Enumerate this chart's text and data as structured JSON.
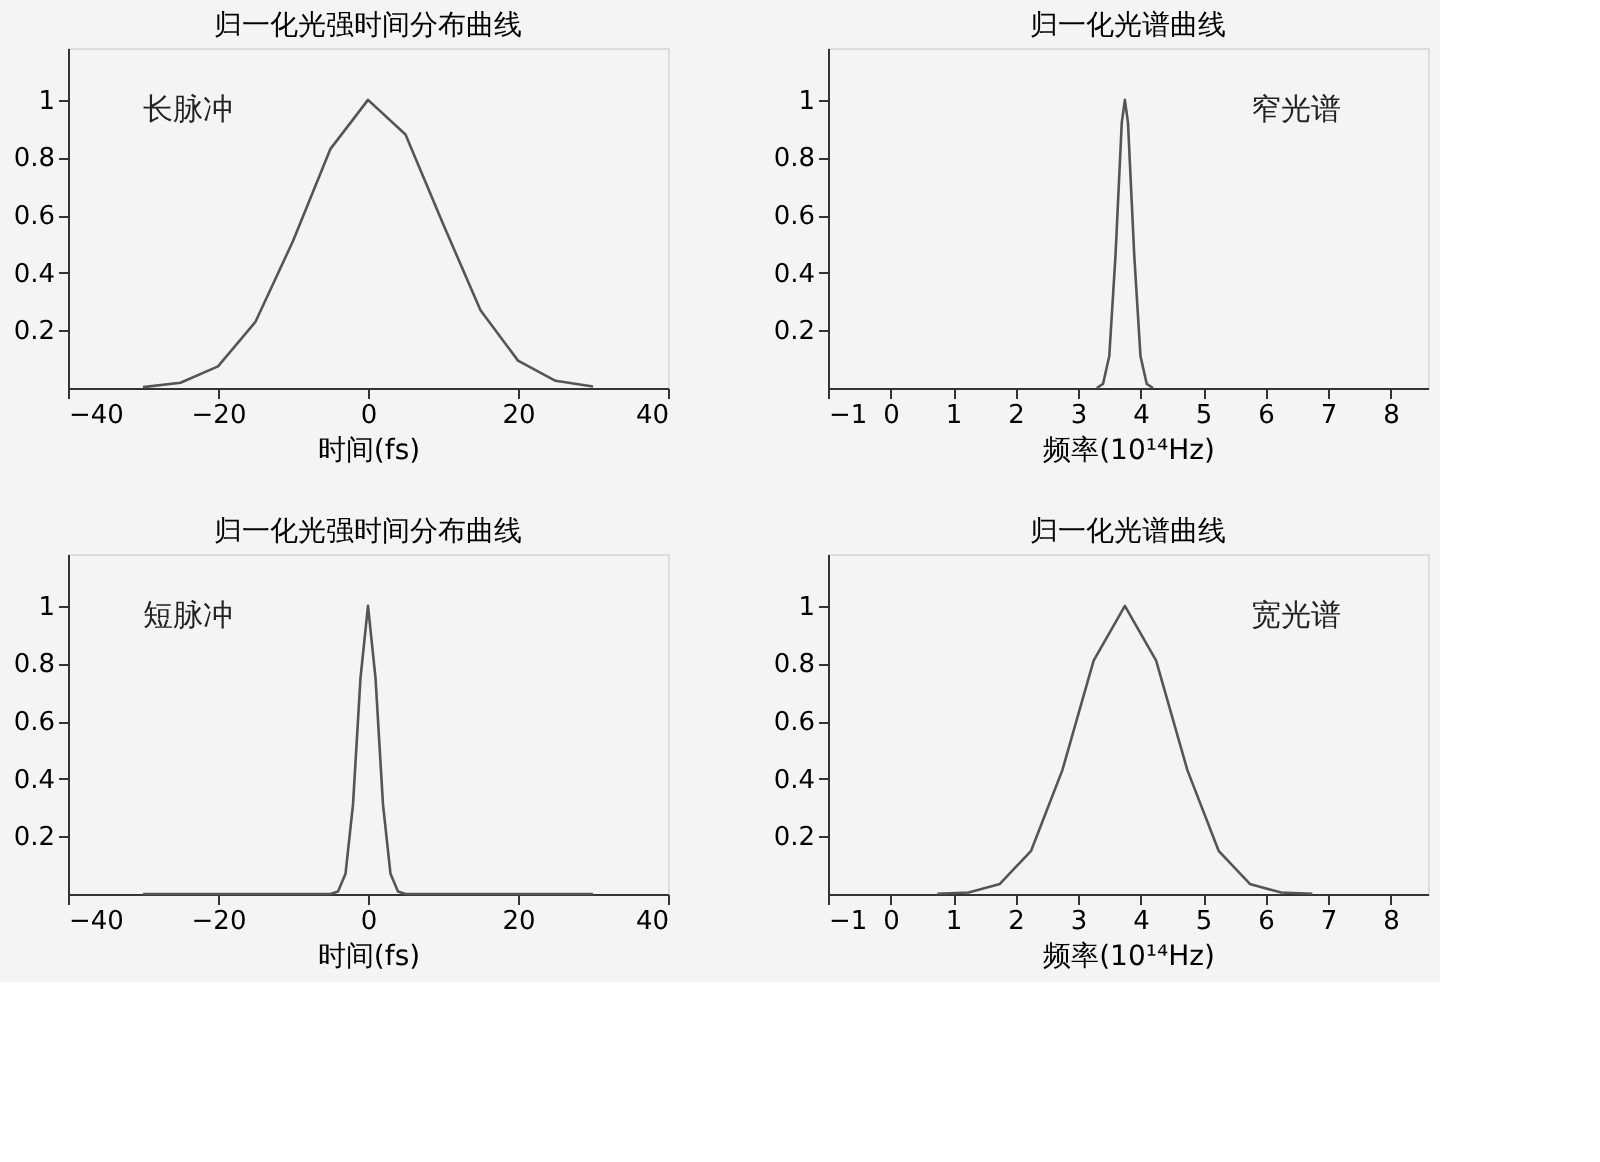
{
  "chart_data": [
    {
      "type": "line",
      "title": "归一化光强时间分布曲线",
      "xlabel": "时间(fs)",
      "annotations": [
        "长脉冲"
      ],
      "xlim": [
        -40,
        40
      ],
      "xticks": [
        -40,
        -20,
        0,
        20,
        40
      ],
      "ylim": [
        0,
        1.18
      ],
      "yticks": [
        0.2,
        0.4,
        0.6,
        0.8,
        1
      ],
      "grid": false,
      "legend": false,
      "series": [
        {
          "color": "#555555",
          "x": [
            -30,
            -25,
            -20,
            -15,
            -10,
            -5,
            0,
            5,
            10,
            15,
            20,
            25,
            30
          ],
          "values": [
            0.003,
            0.018,
            0.075,
            0.23,
            0.51,
            0.83,
            1.0,
            0.88,
            0.57,
            0.27,
            0.095,
            0.025,
            0.005
          ]
        }
      ]
    },
    {
      "type": "line",
      "title": "归一化光谱曲线",
      "xlabel": "频率(10¹⁴Hz)",
      "annotations": [
        "窄光谱"
      ],
      "xlim": [
        -1,
        8.6
      ],
      "xticks": [
        -1,
        0,
        1,
        2,
        3,
        4,
        5,
        6,
        7,
        8
      ],
      "ylim": [
        0,
        1.18
      ],
      "yticks": [
        0.2,
        0.4,
        0.6,
        0.8,
        1
      ],
      "grid": false,
      "legend": false,
      "series": [
        {
          "color": "#555555",
          "x": [
            3.3,
            3.4,
            3.5,
            3.6,
            3.7,
            3.75,
            3.8,
            3.9,
            4.0,
            4.1,
            4.2
          ],
          "values": [
            0,
            0.014,
            0.11,
            0.46,
            0.92,
            1.0,
            0.92,
            0.46,
            0.11,
            0.014,
            0
          ]
        }
      ]
    },
    {
      "type": "line",
      "title": "归一化光强时间分布曲线",
      "xlabel": "时间(fs)",
      "annotations": [
        "短脉冲"
      ],
      "xlim": [
        -40,
        40
      ],
      "xticks": [
        -40,
        -20,
        0,
        20,
        40
      ],
      "ylim": [
        0,
        1.18
      ],
      "yticks": [
        0.2,
        0.4,
        0.6,
        0.8,
        1
      ],
      "grid": false,
      "legend": false,
      "series": [
        {
          "color": "#555555",
          "x": [
            -30,
            -5,
            -4,
            -3,
            -2,
            -1,
            0,
            1,
            2,
            3,
            4,
            5,
            30
          ],
          "values": [
            0,
            0,
            0.009,
            0.07,
            0.31,
            0.75,
            1.0,
            0.75,
            0.31,
            0.07,
            0.009,
            0,
            0
          ]
        }
      ]
    },
    {
      "type": "line",
      "title": "归一化光谱曲线",
      "xlabel": "频率(10¹⁴Hz)",
      "annotations": [
        "宽光谱"
      ],
      "xlim": [
        -1,
        8.6
      ],
      "xticks": [
        -1,
        0,
        1,
        2,
        3,
        4,
        5,
        6,
        7,
        8
      ],
      "ylim": [
        0,
        1.18
      ],
      "yticks": [
        0.2,
        0.4,
        0.6,
        0.8,
        1
      ],
      "grid": false,
      "legend": false,
      "series": [
        {
          "color": "#555555",
          "x": [
            0.75,
            1.25,
            1.75,
            2.25,
            2.75,
            3.25,
            3.75,
            4.25,
            4.75,
            5.25,
            5.75,
            6.25,
            6.75
          ],
          "values": [
            0.001,
            0.005,
            0.035,
            0.15,
            0.43,
            0.81,
            1.0,
            0.81,
            0.43,
            0.15,
            0.035,
            0.005,
            0.001
          ]
        }
      ]
    }
  ]
}
